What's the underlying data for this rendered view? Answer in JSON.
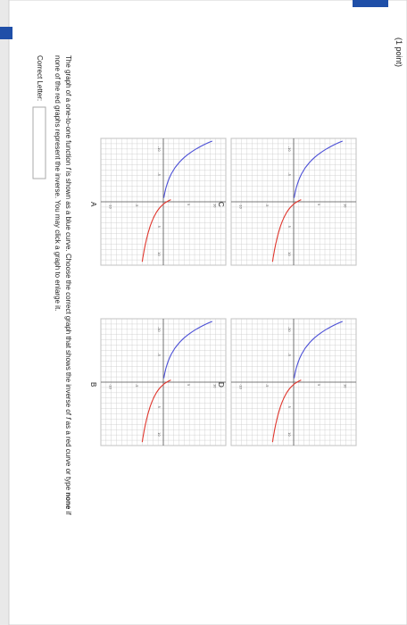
{
  "header": {
    "points": "(1 point)"
  },
  "question": {
    "line1_pre": "The graph of a one-to-one function",
    "fn": "f",
    "line1_mid": "is shown as a blue curve. Choose the correct graph that shows the inverse of",
    "line1_post": "as a red curve or type",
    "none_word": "none",
    "line1_end": "if",
    "line2": "none of the red graphs represent the inverse. You may click a graph to enlarge it."
  },
  "answer": {
    "label": "Correct Letter:",
    "value": ""
  },
  "graphs": [
    {
      "letter": "A",
      "ticks": [
        "-10",
        "-5",
        "5",
        "10",
        "10",
        "5",
        "-5",
        "-10"
      ]
    },
    {
      "letter": "B",
      "ticks": [
        "-10",
        "-5",
        "5",
        "10",
        "10",
        "5",
        "-5",
        "-10"
      ]
    },
    {
      "letter": "C",
      "ticks": [
        "-10",
        "-5",
        "5",
        "10",
        "10",
        "5",
        "-5",
        "-10"
      ]
    },
    {
      "letter": "D",
      "ticks": [
        "-10",
        "-5",
        "5",
        "10",
        "10",
        "5",
        "-5",
        "-10"
      ]
    }
  ],
  "colors": {
    "blue_curve": "#4b4fd6",
    "red_curve": "#e0342b",
    "grid": "#c9c9c9",
    "accent": "#1f4fa8"
  }
}
